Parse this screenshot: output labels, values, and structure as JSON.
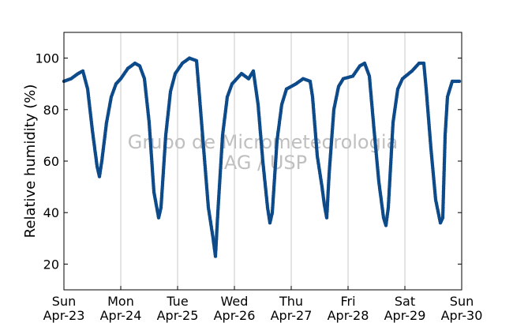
{
  "chart_data": {
    "type": "scatter",
    "title": "",
    "xlabel": "",
    "ylabel": "Relative humidity (%)",
    "ylim": [
      10,
      110
    ],
    "y_ticks": [
      20,
      40,
      60,
      80,
      100
    ],
    "x_range": [
      "2023-04-23T00:00",
      "2023-04-30T00:00"
    ],
    "x_ticks": [
      {
        "date": "2023-04-23",
        "line1": "Sun",
        "line2": "Apr-23"
      },
      {
        "date": "2023-04-24",
        "line1": "Mon",
        "line2": "Apr-24"
      },
      {
        "date": "2023-04-25",
        "line1": "Tue",
        "line2": "Apr-25"
      },
      {
        "date": "2023-04-26",
        "line1": "Wed",
        "line2": "Apr-26"
      },
      {
        "date": "2023-04-27",
        "line1": "Thu",
        "line2": "Apr-27"
      },
      {
        "date": "2023-04-28",
        "line1": "Fri",
        "line2": "Apr-28"
      },
      {
        "date": "2023-04-29",
        "line1": "Sat",
        "line2": "Apr-29"
      },
      {
        "date": "2023-04-30",
        "line1": "Sun",
        "line2": "Apr-30"
      }
    ],
    "grid": "vertical",
    "watermark": [
      "Grupo de Micrometeorologia",
      "IAG / USP"
    ],
    "series": [
      {
        "color": "#0d4a8a",
        "points": [
          [
            "2023-04-23T00:00",
            91
          ],
          [
            "2023-04-23T03:00",
            92
          ],
          [
            "2023-04-23T06:00",
            94
          ],
          [
            "2023-04-23T08:00",
            95
          ],
          [
            "2023-04-23T10:00",
            88
          ],
          [
            "2023-04-23T12:00",
            72
          ],
          [
            "2023-04-23T14:00",
            58
          ],
          [
            "2023-04-23T15:00",
            54
          ],
          [
            "2023-04-23T16:00",
            60
          ],
          [
            "2023-04-23T18:00",
            75
          ],
          [
            "2023-04-23T20:00",
            85
          ],
          [
            "2023-04-23T22:00",
            90
          ],
          [
            "2023-04-24T00:00",
            92
          ],
          [
            "2023-04-24T03:00",
            96
          ],
          [
            "2023-04-24T06:00",
            98
          ],
          [
            "2023-04-24T08:00",
            97
          ],
          [
            "2023-04-24T10:00",
            92
          ],
          [
            "2023-04-24T12:00",
            75
          ],
          [
            "2023-04-24T14:00",
            48
          ],
          [
            "2023-04-24T16:00",
            38
          ],
          [
            "2023-04-24T17:00",
            42
          ],
          [
            "2023-04-24T19:00",
            70
          ],
          [
            "2023-04-24T21:00",
            87
          ],
          [
            "2023-04-24T23:00",
            94
          ],
          [
            "2023-04-25T02:00",
            98
          ],
          [
            "2023-04-25T05:00",
            100
          ],
          [
            "2023-04-25T08:00",
            99
          ],
          [
            "2023-04-25T09:00",
            88
          ],
          [
            "2023-04-25T11:00",
            65
          ],
          [
            "2023-04-25T13:00",
            42
          ],
          [
            "2023-04-25T15:00",
            30
          ],
          [
            "2023-04-25T16:00",
            23
          ],
          [
            "2023-04-25T17:00",
            40
          ],
          [
            "2023-04-25T19:00",
            70
          ],
          [
            "2023-04-25T21:00",
            85
          ],
          [
            "2023-04-25T23:00",
            90
          ],
          [
            "2023-04-26T03:00",
            94
          ],
          [
            "2023-04-26T06:00",
            92
          ],
          [
            "2023-04-26T08:00",
            95
          ],
          [
            "2023-04-26T10:00",
            82
          ],
          [
            "2023-04-26T12:00",
            60
          ],
          [
            "2023-04-26T14:00",
            42
          ],
          [
            "2023-04-26T15:00",
            36
          ],
          [
            "2023-04-26T16:00",
            40
          ],
          [
            "2023-04-26T18:00",
            68
          ],
          [
            "2023-04-26T20:00",
            82
          ],
          [
            "2023-04-26T22:00",
            88
          ],
          [
            "2023-04-27T02:00",
            90
          ],
          [
            "2023-04-27T05:00",
            92
          ],
          [
            "2023-04-27T08:00",
            91
          ],
          [
            "2023-04-27T09:00",
            85
          ],
          [
            "2023-04-27T11:00",
            62
          ],
          [
            "2023-04-27T13:00",
            50
          ],
          [
            "2023-04-27T14:00",
            43
          ],
          [
            "2023-04-27T15:00",
            38
          ],
          [
            "2023-04-27T16:00",
            55
          ],
          [
            "2023-04-27T18:00",
            80
          ],
          [
            "2023-04-27T20:00",
            89
          ],
          [
            "2023-04-27T22:00",
            92
          ],
          [
            "2023-04-28T02:00",
            93
          ],
          [
            "2023-04-28T05:00",
            97
          ],
          [
            "2023-04-28T07:00",
            98
          ],
          [
            "2023-04-28T09:00",
            93
          ],
          [
            "2023-04-28T11:00",
            72
          ],
          [
            "2023-04-28T13:00",
            52
          ],
          [
            "2023-04-28T15:00",
            38
          ],
          [
            "2023-04-28T16:00",
            35
          ],
          [
            "2023-04-28T17:00",
            42
          ],
          [
            "2023-04-28T19:00",
            75
          ],
          [
            "2023-04-28T21:00",
            88
          ],
          [
            "2023-04-28T23:00",
            92
          ],
          [
            "2023-04-29T03:00",
            95
          ],
          [
            "2023-04-29T06:00",
            98
          ],
          [
            "2023-04-29T08:00",
            98
          ],
          [
            "2023-04-29T09:00",
            88
          ],
          [
            "2023-04-29T11:00",
            65
          ],
          [
            "2023-04-29T13:00",
            45
          ],
          [
            "2023-04-29T15:00",
            36
          ],
          [
            "2023-04-29T16:00",
            38
          ],
          [
            "2023-04-29T17:00",
            70
          ],
          [
            "2023-04-29T18:00",
            85
          ],
          [
            "2023-04-29T20:00",
            91
          ],
          [
            "2023-04-29T23:00",
            91
          ]
        ]
      }
    ]
  }
}
